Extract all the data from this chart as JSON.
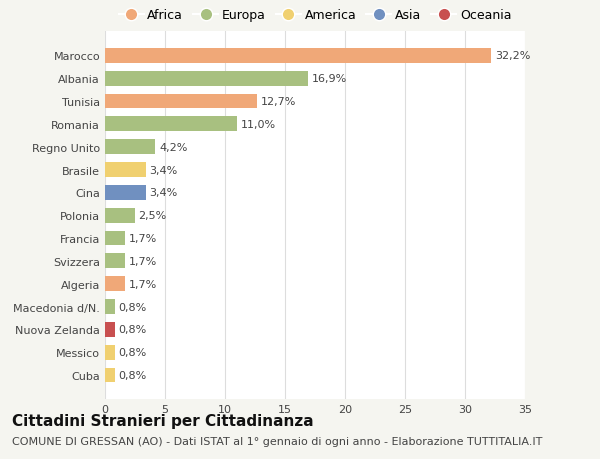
{
  "title": "Cittadini Stranieri per Cittadinanza",
  "subtitle": "COMUNE DI GRESSAN (AO) - Dati ISTAT al 1° gennaio di ogni anno - Elaborazione TUTTITALIA.IT",
  "countries": [
    "Marocco",
    "Albania",
    "Tunisia",
    "Romania",
    "Regno Unito",
    "Brasile",
    "Cina",
    "Polonia",
    "Francia",
    "Svizzera",
    "Algeria",
    "Macedonia d/N.",
    "Nuova Zelanda",
    "Messico",
    "Cuba"
  ],
  "values": [
    32.2,
    16.9,
    12.7,
    11.0,
    4.2,
    3.4,
    3.4,
    2.5,
    1.7,
    1.7,
    1.7,
    0.8,
    0.8,
    0.8,
    0.8
  ],
  "labels": [
    "32,2%",
    "16,9%",
    "12,7%",
    "11,0%",
    "4,2%",
    "3,4%",
    "3,4%",
    "2,5%",
    "1,7%",
    "1,7%",
    "1,7%",
    "0,8%",
    "0,8%",
    "0,8%",
    "0,8%"
  ],
  "continents": [
    "Africa",
    "Europa",
    "Africa",
    "Europa",
    "Europa",
    "America",
    "Asia",
    "Europa",
    "Europa",
    "Europa",
    "Africa",
    "Europa",
    "Oceania",
    "America",
    "America"
  ],
  "continent_colors": {
    "Africa": "#F0A878",
    "Europa": "#A8C080",
    "America": "#F0D070",
    "Asia": "#7090C0",
    "Oceania": "#C85050"
  },
  "legend_order": [
    "Africa",
    "Europa",
    "America",
    "Asia",
    "Oceania"
  ],
  "xlim": [
    0,
    35
  ],
  "xticks": [
    0,
    5,
    10,
    15,
    20,
    25,
    30,
    35
  ],
  "background_color": "#f5f5f0",
  "plot_bg_color": "#ffffff",
  "grid_color": "#dddddd",
  "title_fontsize": 11,
  "subtitle_fontsize": 8,
  "label_fontsize": 8,
  "tick_fontsize": 8,
  "legend_fontsize": 9
}
